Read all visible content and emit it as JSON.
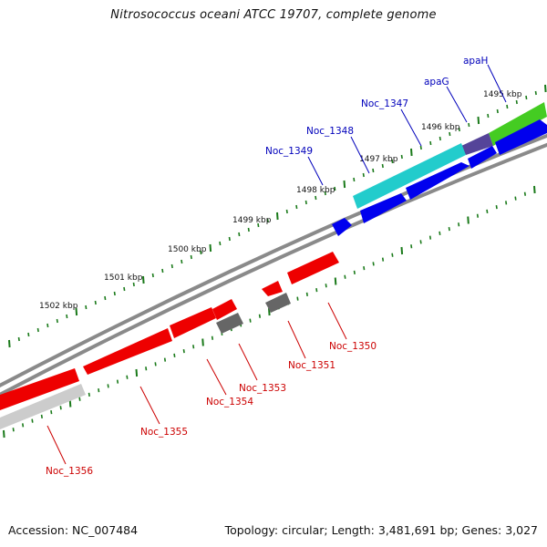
{
  "title": "Nitrosococcus oceani ATCC 19707, complete genome",
  "footer": {
    "accession": "Accession: NC_007484",
    "summary": "Topology: circular; Length: 3,481,691 bp; Genes: 3,027"
  },
  "scale_labels": [
    "1495 kbp",
    "1496 kbp",
    "1497 kbp",
    "1498 kbp",
    "1499 kbp",
    "1500 kbp",
    "1501 kbp",
    "1502 kbp"
  ],
  "colors": {
    "forward_label": "#0000bb",
    "reverse_label": "#cc0000",
    "backbone": "#808080",
    "ticks": "#1a7a1a",
    "forward_cds": "#0000ee",
    "reverse_cds": "#ee0000",
    "other_cds": "#666666",
    "rna_gene": "#cccccc",
    "teal_feature": "#22cccc",
    "purple_feature": "#554499",
    "green_feature": "#44cc22"
  },
  "genes": [
    {
      "label": "apaH",
      "strand": "forward"
    },
    {
      "label": "apaG",
      "strand": "forward"
    },
    {
      "label": "Noc_1347",
      "strand": "forward"
    },
    {
      "label": "Noc_1348",
      "strand": "forward"
    },
    {
      "label": "Noc_1349",
      "strand": "forward"
    },
    {
      "label": "Noc_1350",
      "strand": "reverse"
    },
    {
      "label": "Noc_1351",
      "strand": "reverse"
    },
    {
      "label": "Noc_1353",
      "strand": "reverse"
    },
    {
      "label": "Noc_1354",
      "strand": "reverse"
    },
    {
      "label": "Noc_1355",
      "strand": "reverse"
    },
    {
      "label": "Noc_1356",
      "strand": "reverse"
    }
  ]
}
